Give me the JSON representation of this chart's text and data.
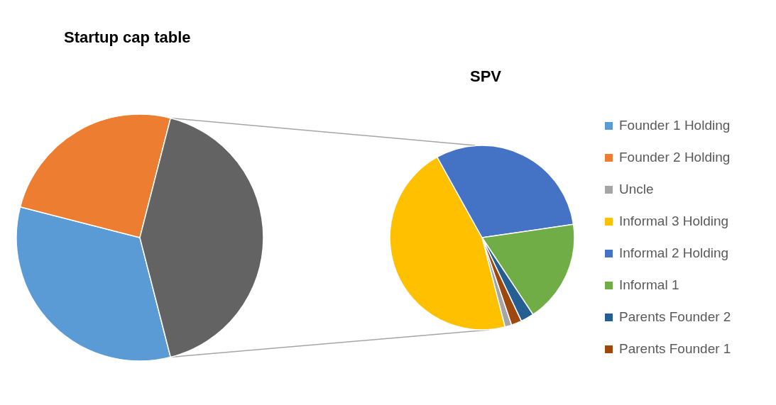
{
  "chart_data": [
    {
      "type": "pie",
      "title": "Startup cap table",
      "categories": [
        "Founder 1 Holding",
        "Founder 2 Holding",
        null
      ],
      "values": [
        33,
        25,
        42
      ],
      "colors": [
        "#5b9bd5",
        "#ed7d31",
        "#636363"
      ],
      "legend": "right"
    },
    {
      "type": "pie",
      "title": "SPV",
      "categories": [
        "Uncle",
        "Informal 3 Holding",
        "Informal 2 Holding",
        "Informal 1",
        "Parents Founder 2",
        "Parents Founder 1"
      ],
      "values": [
        1.2,
        45.9,
        30.8,
        18,
        2.3,
        1.8
      ],
      "colors": [
        "#a5a5a5",
        "#ffc000",
        "#4472c4",
        "#70ad47",
        "#255e91",
        "#9e480e"
      ],
      "legend": "right"
    }
  ]
}
